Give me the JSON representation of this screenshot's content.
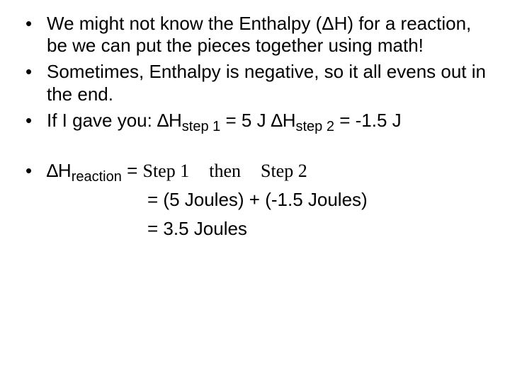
{
  "text_color": "#000000",
  "background_color": "#ffffff",
  "font_family_sans": "Arial",
  "font_family_serif": "Times New Roman",
  "base_font_size_pt": 20,
  "bullets": {
    "b1": "We might not know the Enthalpy (ΔH) for a reaction, be we can put the pieces together using math!",
    "b2": "Sometimes, Enthalpy is negative, so it all evens out in the end.",
    "b3_pre": "If I gave you:  ∆H",
    "b3_sub1": "step 1",
    "b3_mid1": " = 5 J   ∆H",
    "b3_sub2": "step 2",
    "b3_mid2": " = -1.5 J",
    "b4_pre": "∆H",
    "b4_sub": "reaction",
    "b4_eq": " = ",
    "b4_step1": "Step 1",
    "b4_then": "then",
    "b4_step2": "Step 2"
  },
  "eq": {
    "line1": "=  (5 Joules) + (-1.5 Joules)",
    "line2": "=  3.5 Joules"
  }
}
